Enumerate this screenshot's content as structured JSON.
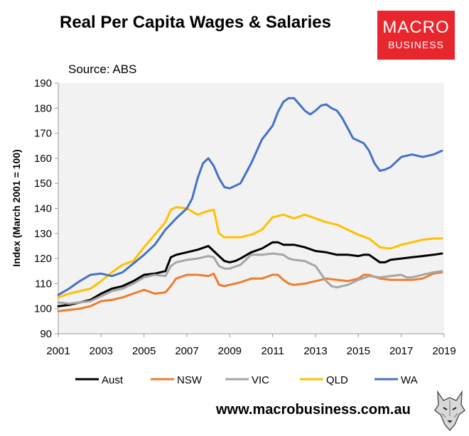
{
  "header": {
    "title": "Real Per Capita Wages & Salaries",
    "source": "Source: ABS"
  },
  "logo": {
    "top": "MACRO",
    "bottom": "BUSINESS"
  },
  "footer": {
    "website": "www.macrobusiness.com.au"
  },
  "colors": {
    "Aust": "#000000",
    "NSW": "#ed7d31",
    "VIC": "#a5a5a5",
    "QLD": "#ffc000",
    "WA": "#4472c4",
    "logo_bg": "#e8262d",
    "plot_bg": "#f2f2f2"
  },
  "chart_data": {
    "type": "line",
    "title": "Real Per Capita Wages & Salaries",
    "xlabel": "",
    "ylabel": "Index (March 2001 = 100)",
    "xlim": [
      2001,
      2019
    ],
    "ylim": [
      90,
      190
    ],
    "x_ticks": [
      "2001",
      "2003",
      "2005",
      "2007",
      "2009",
      "2011",
      "2013",
      "2015",
      "2017",
      "2019"
    ],
    "y_ticks": [
      "90",
      "100",
      "110",
      "120",
      "130",
      "140",
      "150",
      "160",
      "170",
      "180",
      "190"
    ],
    "legend_position": "bottom",
    "grid": false,
    "series": [
      {
        "name": "Aust",
        "x": [
          2001,
          2001.5,
          2002,
          2002.5,
          2003,
          2003.5,
          2004,
          2004.5,
          2005,
          2005.5,
          2006,
          2006.25,
          2006.5,
          2007,
          2007.5,
          2008,
          2008.25,
          2008.5,
          2008.75,
          2009,
          2009.25,
          2009.5,
          2010,
          2010.5,
          2011,
          2011.25,
          2011.5,
          2011.75,
          2012,
          2012.5,
          2013,
          2013.5,
          2014,
          2014.5,
          2015,
          2015.25,
          2015.5,
          2015.75,
          2016,
          2016.25,
          2016.5,
          2017,
          2017.5,
          2018,
          2018.5,
          2018.9
        ],
        "values": [
          101,
          101.5,
          102.5,
          103.5,
          106,
          108,
          109,
          111,
          113.5,
          114,
          115,
          120.5,
          121.5,
          122.5,
          123.5,
          125,
          123,
          121,
          119,
          118.5,
          119,
          120,
          122.5,
          124,
          126.5,
          126.5,
          125.5,
          125.5,
          125.5,
          124.5,
          123,
          122.5,
          121.5,
          121.5,
          121,
          121.5,
          121.5,
          120,
          118.5,
          118.5,
          119.5,
          120,
          120.5,
          121,
          121.5,
          122
        ]
      },
      {
        "name": "NSW",
        "x": [
          2001,
          2001.5,
          2002,
          2002.5,
          2003,
          2003.5,
          2004,
          2004.5,
          2005,
          2005.5,
          2006,
          2006.25,
          2006.5,
          2007,
          2007.5,
          2008,
          2008.25,
          2008.5,
          2008.75,
          2009,
          2009.5,
          2010,
          2010.5,
          2011,
          2011.25,
          2011.5,
          2011.75,
          2012,
          2012.5,
          2013,
          2013.5,
          2014,
          2014.5,
          2015,
          2015.25,
          2015.5,
          2016,
          2016.5,
          2017,
          2017.5,
          2018,
          2018.25,
          2018.5,
          2018.9
        ],
        "values": [
          99,
          99.5,
          100,
          101,
          103,
          103.5,
          104.5,
          106,
          107.5,
          106,
          106.5,
          109,
          112,
          113.5,
          113.5,
          113,
          114,
          109.5,
          109,
          109.5,
          110.5,
          112,
          112,
          113.5,
          113.5,
          111.5,
          110,
          109.5,
          110,
          111,
          112,
          111.5,
          111,
          112,
          113.5,
          113.5,
          112,
          111.5,
          111.5,
          111.5,
          112,
          113,
          114,
          114.5
        ]
      },
      {
        "name": "VIC",
        "x": [
          2001,
          2001.5,
          2002,
          2002.5,
          2003,
          2003.5,
          2004,
          2004.5,
          2005,
          2005.5,
          2006,
          2006.25,
          2006.5,
          2007,
          2007.5,
          2008,
          2008.25,
          2008.5,
          2008.75,
          2009,
          2009.5,
          2010,
          2010.5,
          2011,
          2011.5,
          2011.75,
          2012,
          2012.5,
          2013,
          2013.25,
          2013.5,
          2013.75,
          2014,
          2014.5,
          2015,
          2015.5,
          2016,
          2016.5,
          2017,
          2017.25,
          2017.5,
          2018,
          2018.5,
          2018.9
        ],
        "values": [
          102.5,
          102,
          102.5,
          103,
          105,
          107,
          108,
          110,
          112.5,
          113.5,
          113,
          117,
          118.5,
          119.5,
          120,
          121,
          120.5,
          117,
          116,
          116,
          117.5,
          121.5,
          121.5,
          122,
          121.5,
          120,
          119.5,
          119,
          117,
          114,
          111,
          109,
          108.5,
          109.5,
          111.5,
          113,
          112.5,
          113,
          113.5,
          112.5,
          112.5,
          113.5,
          114.5,
          115
        ]
      },
      {
        "name": "QLD",
        "x": [
          2001,
          2001.5,
          2002,
          2002.5,
          2003,
          2003.5,
          2004,
          2004.5,
          2005,
          2005.5,
          2006,
          2006.25,
          2006.5,
          2007,
          2007.5,
          2008,
          2008.25,
          2008.5,
          2008.75,
          2009,
          2009.5,
          2010,
          2010.5,
          2011,
          2011.5,
          2012,
          2012.5,
          2013,
          2013.5,
          2014,
          2014.5,
          2015,
          2015.5,
          2016,
          2016.5,
          2017,
          2017.5,
          2018,
          2018.5,
          2018.9
        ],
        "values": [
          104.5,
          106,
          107,
          108,
          111,
          114.5,
          117.5,
          119,
          124.5,
          129.5,
          134.5,
          139.5,
          140.5,
          140,
          137.5,
          139,
          139.5,
          130,
          128.5,
          128.5,
          128.5,
          129.5,
          131.5,
          136.5,
          137.5,
          136,
          137.5,
          136,
          134.5,
          133.5,
          131.5,
          129.5,
          128,
          124.5,
          124,
          125.5,
          126.5,
          127.5,
          128,
          128
        ]
      },
      {
        "name": "WA",
        "x": [
          2001,
          2001.5,
          2002,
          2002.5,
          2003,
          2003.5,
          2004,
          2004.5,
          2005,
          2005.5,
          2006,
          2006.5,
          2007,
          2007.25,
          2007.5,
          2007.75,
          2008,
          2008.25,
          2008.5,
          2008.75,
          2009,
          2009.5,
          2010,
          2010.5,
          2011,
          2011.25,
          2011.5,
          2011.75,
          2012,
          2012.25,
          2012.5,
          2012.75,
          2013,
          2013.25,
          2013.5,
          2013.75,
          2014,
          2014.25,
          2014.5,
          2014.75,
          2015,
          2015.25,
          2015.5,
          2015.75,
          2016,
          2016.25,
          2016.5,
          2017,
          2017.5,
          2018,
          2018.5,
          2018.9
        ],
        "values": [
          105.5,
          108,
          111,
          113.5,
          114,
          113,
          114.5,
          118,
          121.5,
          125.5,
          131.5,
          136,
          140,
          144,
          152,
          158,
          160,
          157,
          152,
          148.5,
          148,
          150,
          158,
          167.5,
          173,
          178.5,
          182.5,
          184,
          184,
          181.5,
          179,
          177.5,
          179,
          181,
          181.5,
          180,
          179,
          176,
          172,
          168,
          167,
          166,
          163,
          158,
          155,
          155.5,
          156.5,
          160.5,
          161.5,
          160.5,
          161.5,
          163
        ]
      }
    ]
  }
}
